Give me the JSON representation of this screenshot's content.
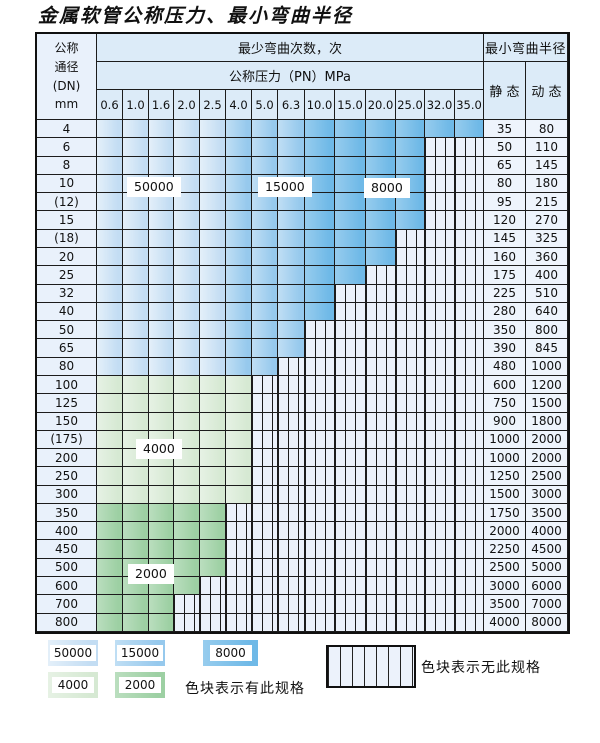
{
  "title": "金属软管公称压力、最小弯曲半径",
  "table": {
    "dn_header_lines": "公称\n通径\n(DN)\nmm",
    "bend_cycles_header": "最少弯曲次数，次",
    "pressure_header": "公称压力（PN）MPa",
    "pressure_columns": [
      "0.6",
      "1.0",
      "1.6",
      "2.0",
      "2.5",
      "4.0",
      "5.0",
      "6.3",
      "10.0",
      "15.0",
      "20.0",
      "25.0",
      "32.0",
      "35.0"
    ],
    "radius_header": "最小弯曲半径",
    "static_label": "静 态",
    "dynamic_label": "动 态",
    "rows": [
      {
        "dn": "4",
        "colored": 14,
        "scheme": "blue",
        "static": "35",
        "dynamic": "80"
      },
      {
        "dn": "6",
        "colored": 12,
        "scheme": "blue",
        "static": "50",
        "dynamic": "110"
      },
      {
        "dn": "8",
        "colored": 12,
        "scheme": "blue",
        "static": "65",
        "dynamic": "145"
      },
      {
        "dn": "10",
        "colored": 12,
        "scheme": "blue",
        "static": "80",
        "dynamic": "180"
      },
      {
        "dn": "(12)",
        "colored": 12,
        "scheme": "blue",
        "static": "95",
        "dynamic": "215"
      },
      {
        "dn": "15",
        "colored": 12,
        "scheme": "blue",
        "static": "120",
        "dynamic": "270"
      },
      {
        "dn": "(18)",
        "colored": 11,
        "scheme": "blue",
        "static": "145",
        "dynamic": "325"
      },
      {
        "dn": "20",
        "colored": 11,
        "scheme": "blue",
        "static": "160",
        "dynamic": "360"
      },
      {
        "dn": "25",
        "colored": 10,
        "scheme": "blue",
        "static": "175",
        "dynamic": "400"
      },
      {
        "dn": "32",
        "colored": 9,
        "scheme": "blue",
        "static": "225",
        "dynamic": "510"
      },
      {
        "dn": "40",
        "colored": 9,
        "scheme": "blue",
        "static": "280",
        "dynamic": "640"
      },
      {
        "dn": "50",
        "colored": 8,
        "scheme": "blue",
        "static": "350",
        "dynamic": "800"
      },
      {
        "dn": "65",
        "colored": 8,
        "scheme": "blue",
        "static": "390",
        "dynamic": "845"
      },
      {
        "dn": "80",
        "colored": 7,
        "scheme": "blue",
        "static": "480",
        "dynamic": "1000"
      },
      {
        "dn": "100",
        "colored": 6,
        "scheme": "g4",
        "static": "600",
        "dynamic": "1200"
      },
      {
        "dn": "125",
        "colored": 6,
        "scheme": "g4",
        "static": "750",
        "dynamic": "1500"
      },
      {
        "dn": "150",
        "colored": 6,
        "scheme": "g4",
        "static": "900",
        "dynamic": "1800"
      },
      {
        "dn": "(175)",
        "colored": 6,
        "scheme": "g4",
        "static": "1000",
        "dynamic": "2000"
      },
      {
        "dn": "200",
        "colored": 6,
        "scheme": "g4",
        "static": "1000",
        "dynamic": "2000"
      },
      {
        "dn": "250",
        "colored": 6,
        "scheme": "g4",
        "static": "1250",
        "dynamic": "2500"
      },
      {
        "dn": "300",
        "colored": 6,
        "scheme": "g4",
        "static": "1500",
        "dynamic": "3000"
      },
      {
        "dn": "350",
        "colored": 5,
        "scheme": "g2",
        "static": "1750",
        "dynamic": "3500"
      },
      {
        "dn": "400",
        "colored": 5,
        "scheme": "g2",
        "static": "2000",
        "dynamic": "4000"
      },
      {
        "dn": "450",
        "colored": 5,
        "scheme": "g2",
        "static": "2250",
        "dynamic": "4500"
      },
      {
        "dn": "500",
        "colored": 5,
        "scheme": "g2",
        "static": "2500",
        "dynamic": "5000"
      },
      {
        "dn": "600",
        "colored": 4,
        "scheme": "g2",
        "static": "3000",
        "dynamic": "6000"
      },
      {
        "dn": "700",
        "colored": 3,
        "scheme": "g2",
        "static": "3500",
        "dynamic": "7000"
      },
      {
        "dn": "800",
        "colored": 3,
        "scheme": "g2",
        "static": "4000",
        "dynamic": "8000"
      }
    ]
  },
  "overlay_labels": {
    "b50000": "50000",
    "b15000": "15000",
    "b8000": "8000",
    "b4000": "4000",
    "b2000": "2000"
  },
  "legend": {
    "items": [
      {
        "label": "50000",
        "color": "c50000"
      },
      {
        "label": "15000",
        "color": "c15000"
      },
      {
        "label": "8000",
        "color": "c8000"
      },
      {
        "label": "4000",
        "color": "c4000"
      },
      {
        "label": "2000",
        "color": "c2000"
      }
    ],
    "has_spec_text": "色块表示有此规格",
    "no_spec_text": "色块表示无此规格"
  },
  "colors": {
    "c50000": "#c3ddf3",
    "c15000": "#96c9ed",
    "c8000": "#6fb9e7",
    "c4000": "#d6e9d3",
    "c2000": "#9dd0a3",
    "hatch_bg": "#ecf2fb",
    "grid": "#1c1c1c",
    "header_bg": "#dcebf8",
    "label_bg": "#e9f1fb",
    "value_bg": "#eef4fc"
  },
  "chart_data": {
    "type": "heatmap",
    "title": "金属软管公称压力、最小弯曲半径",
    "xlabel": "公称压力（PN）MPa",
    "ylabel": "公称通径 (DN) mm",
    "x_ticks_MPa": [
      0.6,
      1.0,
      1.6,
      2.0,
      2.5,
      4.0,
      5.0,
      6.3,
      10.0,
      15.0,
      20.0,
      25.0,
      32.0,
      35.0
    ],
    "bend_cycles_by_pressure_group": {
      "0.6-2.5": 50000,
      "4.0-6.3": 15000,
      "10.0-35.0": 8000
    },
    "bend_cycles_large_dn": {
      "DN100-300": 4000,
      "DN350-800": 2000
    },
    "legend_values": [
      50000,
      15000,
      8000,
      4000,
      2000
    ],
    "rows": [
      {
        "dn": "4",
        "max_pn": 35.0,
        "static_radius": 35,
        "dynamic_radius": 80
      },
      {
        "dn": "6",
        "max_pn": 25.0,
        "static_radius": 50,
        "dynamic_radius": 110
      },
      {
        "dn": "8",
        "max_pn": 25.0,
        "static_radius": 65,
        "dynamic_radius": 145
      },
      {
        "dn": "10",
        "max_pn": 25.0,
        "static_radius": 80,
        "dynamic_radius": 180
      },
      {
        "dn": "(12)",
        "max_pn": 25.0,
        "static_radius": 95,
        "dynamic_radius": 215
      },
      {
        "dn": "15",
        "max_pn": 25.0,
        "static_radius": 120,
        "dynamic_radius": 270
      },
      {
        "dn": "(18)",
        "max_pn": 20.0,
        "static_radius": 145,
        "dynamic_radius": 325
      },
      {
        "dn": "20",
        "max_pn": 20.0,
        "static_radius": 160,
        "dynamic_radius": 360
      },
      {
        "dn": "25",
        "max_pn": 15.0,
        "static_radius": 175,
        "dynamic_radius": 400
      },
      {
        "dn": "32",
        "max_pn": 10.0,
        "static_radius": 225,
        "dynamic_radius": 510
      },
      {
        "dn": "40",
        "max_pn": 10.0,
        "static_radius": 280,
        "dynamic_radius": 640
      },
      {
        "dn": "50",
        "max_pn": 6.3,
        "static_radius": 350,
        "dynamic_radius": 800
      },
      {
        "dn": "65",
        "max_pn": 6.3,
        "static_radius": 390,
        "dynamic_radius": 845
      },
      {
        "dn": "80",
        "max_pn": 5.0,
        "static_radius": 480,
        "dynamic_radius": 1000
      },
      {
        "dn": "100",
        "max_pn": 4.0,
        "static_radius": 600,
        "dynamic_radius": 1200
      },
      {
        "dn": "125",
        "max_pn": 4.0,
        "static_radius": 750,
        "dynamic_radius": 1500
      },
      {
        "dn": "150",
        "max_pn": 4.0,
        "static_radius": 900,
        "dynamic_radius": 1800
      },
      {
        "dn": "(175)",
        "max_pn": 4.0,
        "static_radius": 1000,
        "dynamic_radius": 2000
      },
      {
        "dn": "200",
        "max_pn": 4.0,
        "static_radius": 1000,
        "dynamic_radius": 2000
      },
      {
        "dn": "250",
        "max_pn": 4.0,
        "static_radius": 1250,
        "dynamic_radius": 2500
      },
      {
        "dn": "300",
        "max_pn": 4.0,
        "static_radius": 1500,
        "dynamic_radius": 3000
      },
      {
        "dn": "350",
        "max_pn": 2.5,
        "static_radius": 1750,
        "dynamic_radius": 3500
      },
      {
        "dn": "400",
        "max_pn": 2.5,
        "static_radius": 2000,
        "dynamic_radius": 4000
      },
      {
        "dn": "450",
        "max_pn": 2.5,
        "static_radius": 2250,
        "dynamic_radius": 4500
      },
      {
        "dn": "500",
        "max_pn": 2.5,
        "static_radius": 2500,
        "dynamic_radius": 5000
      },
      {
        "dn": "600",
        "max_pn": 2.0,
        "static_radius": 3000,
        "dynamic_radius": 6000
      },
      {
        "dn": "700",
        "max_pn": 1.6,
        "static_radius": 3500,
        "dynamic_radius": 7000
      },
      {
        "dn": "800",
        "max_pn": 1.6,
        "static_radius": 4000,
        "dynamic_radius": 8000
      }
    ],
    "annotations": [
      "色块表示有此规格",
      "色块表示无此规格"
    ],
    "legend_position": "bottom"
  }
}
